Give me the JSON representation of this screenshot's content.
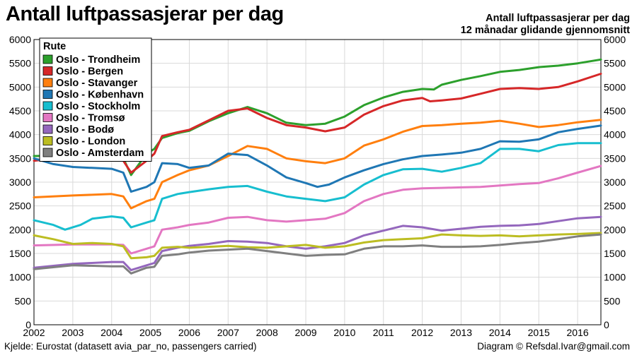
{
  "header": {
    "title": "Antall luftpassasjerar per dag",
    "subtitle_line1": "Antall luftpassasjerar per dag",
    "subtitle_line2": "12 månadar glidande gjennomsnitt"
  },
  "footer": {
    "source": "Kjelde: Eurostat (datasett avia_par_no, passengers carried)",
    "credit": "Diagram © Refsdal.Ivar@gmail.com"
  },
  "chart_data": {
    "type": "line",
    "title": "Antall luftpassasjerar per dag",
    "subtitle": "12 månadar glidande gjennomsnitt",
    "xlim": [
      2002,
      2016.6
    ],
    "ylim": [
      0,
      6000
    ],
    "x_ticks": [
      "2002",
      "2003",
      "2004",
      "2005",
      "2006",
      "2007",
      "2008",
      "2009",
      "2010",
      "2011",
      "2012",
      "2013",
      "2014",
      "2015",
      "2016"
    ],
    "y_ticks": [
      0,
      500,
      1000,
      1500,
      2000,
      2500,
      3000,
      3500,
      4000,
      4500,
      5000,
      5500,
      6000
    ],
    "grid": true,
    "legend_title": "Rute",
    "legend_position": "top-left",
    "series": [
      {
        "name": "Oslo - Trondheim",
        "color": "#2ca02c",
        "points": [
          [
            2002,
            3550
          ],
          [
            2003,
            3560
          ],
          [
            2004,
            3540
          ],
          [
            2004.3,
            3500
          ],
          [
            2004.5,
            3150
          ],
          [
            2004.9,
            3600
          ],
          [
            2005.1,
            3700
          ],
          [
            2005.3,
            3930
          ],
          [
            2005.7,
            4030
          ],
          [
            2006,
            4080
          ],
          [
            2006.5,
            4280
          ],
          [
            2007,
            4450
          ],
          [
            2007.5,
            4580
          ],
          [
            2008,
            4450
          ],
          [
            2008.5,
            4250
          ],
          [
            2009,
            4200
          ],
          [
            2009.5,
            4230
          ],
          [
            2010,
            4380
          ],
          [
            2010.5,
            4620
          ],
          [
            2011,
            4780
          ],
          [
            2011.5,
            4900
          ],
          [
            2012,
            4960
          ],
          [
            2012.3,
            4950
          ],
          [
            2012.5,
            5050
          ],
          [
            2013,
            5150
          ],
          [
            2013.5,
            5230
          ],
          [
            2014,
            5320
          ],
          [
            2014.5,
            5360
          ],
          [
            2015,
            5420
          ],
          [
            2015.5,
            5450
          ],
          [
            2016,
            5500
          ],
          [
            2016.6,
            5580
          ]
        ]
      },
      {
        "name": "Oslo - Bergen",
        "color": "#d62728",
        "points": [
          [
            2002,
            3450
          ],
          [
            2003,
            3550
          ],
          [
            2004,
            3500
          ],
          [
            2004.3,
            3450
          ],
          [
            2004.5,
            3200
          ],
          [
            2004.9,
            3450
          ],
          [
            2005.1,
            3600
          ],
          [
            2005.3,
            3970
          ],
          [
            2005.7,
            4050
          ],
          [
            2006,
            4100
          ],
          [
            2006.5,
            4300
          ],
          [
            2007,
            4500
          ],
          [
            2007.5,
            4550
          ],
          [
            2008,
            4350
          ],
          [
            2008.5,
            4200
          ],
          [
            2009,
            4150
          ],
          [
            2009.5,
            4070
          ],
          [
            2010,
            4150
          ],
          [
            2010.5,
            4420
          ],
          [
            2011,
            4600
          ],
          [
            2011.5,
            4720
          ],
          [
            2012,
            4770
          ],
          [
            2012.2,
            4700
          ],
          [
            2012.5,
            4720
          ],
          [
            2013,
            4760
          ],
          [
            2013.5,
            4860
          ],
          [
            2014,
            4960
          ],
          [
            2014.5,
            4980
          ],
          [
            2015,
            4960
          ],
          [
            2015.5,
            5000
          ],
          [
            2016,
            5120
          ],
          [
            2016.6,
            5280
          ]
        ]
      },
      {
        "name": "Oslo - Stavanger",
        "color": "#ff7f0e",
        "points": [
          [
            2002,
            2680
          ],
          [
            2003,
            2720
          ],
          [
            2004,
            2750
          ],
          [
            2004.3,
            2700
          ],
          [
            2004.5,
            2450
          ],
          [
            2004.9,
            2600
          ],
          [
            2005.1,
            2650
          ],
          [
            2005.3,
            3000
          ],
          [
            2005.7,
            3150
          ],
          [
            2006,
            3250
          ],
          [
            2006.5,
            3350
          ],
          [
            2007,
            3550
          ],
          [
            2007.5,
            3760
          ],
          [
            2008,
            3700
          ],
          [
            2008.5,
            3500
          ],
          [
            2009,
            3440
          ],
          [
            2009.5,
            3400
          ],
          [
            2010,
            3500
          ],
          [
            2010.5,
            3770
          ],
          [
            2011,
            3900
          ],
          [
            2011.5,
            4060
          ],
          [
            2012,
            4180
          ],
          [
            2012.5,
            4200
          ],
          [
            2013,
            4230
          ],
          [
            2013.5,
            4250
          ],
          [
            2014,
            4290
          ],
          [
            2014.5,
            4230
          ],
          [
            2015,
            4160
          ],
          [
            2015.5,
            4200
          ],
          [
            2016,
            4260
          ],
          [
            2016.6,
            4310
          ]
        ]
      },
      {
        "name": "Oslo - København",
        "color": "#1f77b4",
        "points": [
          [
            2002,
            3500
          ],
          [
            2002.5,
            3380
          ],
          [
            2003,
            3320
          ],
          [
            2003.5,
            3300
          ],
          [
            2004,
            3280
          ],
          [
            2004.3,
            3200
          ],
          [
            2004.5,
            2800
          ],
          [
            2004.9,
            2900
          ],
          [
            2005.1,
            3000
          ],
          [
            2005.3,
            3400
          ],
          [
            2005.7,
            3380
          ],
          [
            2006,
            3300
          ],
          [
            2006.5,
            3350
          ],
          [
            2007,
            3600
          ],
          [
            2007.5,
            3570
          ],
          [
            2008,
            3350
          ],
          [
            2008.5,
            3100
          ],
          [
            2009,
            2980
          ],
          [
            2009.3,
            2900
          ],
          [
            2009.6,
            2950
          ],
          [
            2010,
            3100
          ],
          [
            2010.5,
            3250
          ],
          [
            2011,
            3380
          ],
          [
            2011.5,
            3480
          ],
          [
            2012,
            3550
          ],
          [
            2012.5,
            3580
          ],
          [
            2013,
            3620
          ],
          [
            2013.5,
            3700
          ],
          [
            2014,
            3860
          ],
          [
            2014.5,
            3850
          ],
          [
            2015,
            3900
          ],
          [
            2015.5,
            4050
          ],
          [
            2016,
            4120
          ],
          [
            2016.6,
            4190
          ]
        ]
      },
      {
        "name": "Oslo - Stockholm",
        "color": "#17becf",
        "points": [
          [
            2002,
            2200
          ],
          [
            2002.5,
            2100
          ],
          [
            2002.8,
            2000
          ],
          [
            2003.2,
            2100
          ],
          [
            2003.5,
            2230
          ],
          [
            2004,
            2280
          ],
          [
            2004.3,
            2250
          ],
          [
            2004.5,
            2050
          ],
          [
            2004.9,
            2150
          ],
          [
            2005.1,
            2200
          ],
          [
            2005.3,
            2650
          ],
          [
            2005.7,
            2750
          ],
          [
            2006,
            2790
          ],
          [
            2006.5,
            2850
          ],
          [
            2007,
            2900
          ],
          [
            2007.5,
            2920
          ],
          [
            2008,
            2800
          ],
          [
            2008.5,
            2700
          ],
          [
            2009,
            2650
          ],
          [
            2009.5,
            2600
          ],
          [
            2010,
            2680
          ],
          [
            2010.5,
            2950
          ],
          [
            2011,
            3150
          ],
          [
            2011.5,
            3270
          ],
          [
            2012,
            3280
          ],
          [
            2012.5,
            3220
          ],
          [
            2013,
            3300
          ],
          [
            2013.5,
            3400
          ],
          [
            2014,
            3700
          ],
          [
            2014.5,
            3700
          ],
          [
            2015,
            3650
          ],
          [
            2015.5,
            3780
          ],
          [
            2016,
            3820
          ],
          [
            2016.6,
            3820
          ]
        ]
      },
      {
        "name": "Oslo - Tromsø",
        "color": "#e377c2",
        "points": [
          [
            2002,
            1670
          ],
          [
            2003,
            1690
          ],
          [
            2004,
            1690
          ],
          [
            2004.3,
            1680
          ],
          [
            2004.5,
            1500
          ],
          [
            2004.9,
            1600
          ],
          [
            2005.1,
            1650
          ],
          [
            2005.3,
            2000
          ],
          [
            2005.7,
            2050
          ],
          [
            2006,
            2100
          ],
          [
            2006.5,
            2150
          ],
          [
            2007,
            2250
          ],
          [
            2007.5,
            2270
          ],
          [
            2008,
            2200
          ],
          [
            2008.5,
            2170
          ],
          [
            2009,
            2200
          ],
          [
            2009.5,
            2230
          ],
          [
            2010,
            2350
          ],
          [
            2010.5,
            2600
          ],
          [
            2011,
            2750
          ],
          [
            2011.5,
            2840
          ],
          [
            2012,
            2870
          ],
          [
            2012.5,
            2880
          ],
          [
            2013,
            2890
          ],
          [
            2013.5,
            2900
          ],
          [
            2014,
            2930
          ],
          [
            2014.5,
            2960
          ],
          [
            2015,
            2980
          ],
          [
            2015.5,
            3080
          ],
          [
            2016,
            3200
          ],
          [
            2016.6,
            3340
          ]
        ]
      },
      {
        "name": "Oslo - Bodø",
        "color": "#9467bd",
        "points": [
          [
            2002,
            1200
          ],
          [
            2003,
            1280
          ],
          [
            2004,
            1320
          ],
          [
            2004.3,
            1320
          ],
          [
            2004.5,
            1150
          ],
          [
            2004.9,
            1250
          ],
          [
            2005.1,
            1300
          ],
          [
            2005.3,
            1550
          ],
          [
            2005.7,
            1620
          ],
          [
            2006,
            1660
          ],
          [
            2006.5,
            1700
          ],
          [
            2007,
            1760
          ],
          [
            2007.5,
            1750
          ],
          [
            2008,
            1720
          ],
          [
            2008.5,
            1650
          ],
          [
            2009,
            1600
          ],
          [
            2009.5,
            1650
          ],
          [
            2010,
            1720
          ],
          [
            2010.5,
            1880
          ],
          [
            2011,
            1980
          ],
          [
            2011.5,
            2080
          ],
          [
            2012,
            2050
          ],
          [
            2012.5,
            1980
          ],
          [
            2013,
            2020
          ],
          [
            2013.5,
            2060
          ],
          [
            2014,
            2080
          ],
          [
            2014.5,
            2090
          ],
          [
            2015,
            2120
          ],
          [
            2015.5,
            2180
          ],
          [
            2016,
            2240
          ],
          [
            2016.6,
            2270
          ]
        ]
      },
      {
        "name": "Oslo - London",
        "color": "#bcbd22",
        "points": [
          [
            2002,
            1880
          ],
          [
            2002.5,
            1800
          ],
          [
            2003,
            1700
          ],
          [
            2003.5,
            1720
          ],
          [
            2004,
            1700
          ],
          [
            2004.3,
            1650
          ],
          [
            2004.5,
            1400
          ],
          [
            2004.9,
            1420
          ],
          [
            2005.1,
            1450
          ],
          [
            2005.3,
            1620
          ],
          [
            2005.7,
            1640
          ],
          [
            2006,
            1620
          ],
          [
            2006.5,
            1640
          ],
          [
            2007,
            1660
          ],
          [
            2007.5,
            1630
          ],
          [
            2008,
            1620
          ],
          [
            2008.5,
            1650
          ],
          [
            2009,
            1680
          ],
          [
            2009.5,
            1620
          ],
          [
            2010,
            1650
          ],
          [
            2010.5,
            1730
          ],
          [
            2011,
            1780
          ],
          [
            2011.5,
            1800
          ],
          [
            2012,
            1820
          ],
          [
            2012.5,
            1900
          ],
          [
            2013,
            1880
          ],
          [
            2013.5,
            1870
          ],
          [
            2014,
            1880
          ],
          [
            2014.5,
            1860
          ],
          [
            2015,
            1880
          ],
          [
            2015.5,
            1900
          ],
          [
            2016,
            1910
          ],
          [
            2016.6,
            1930
          ]
        ]
      },
      {
        "name": "Oslo - Amsterdam",
        "color": "#7f7f7f",
        "points": [
          [
            2002,
            1170
          ],
          [
            2003,
            1250
          ],
          [
            2004,
            1230
          ],
          [
            2004.3,
            1230
          ],
          [
            2004.5,
            1080
          ],
          [
            2004.9,
            1200
          ],
          [
            2005.1,
            1220
          ],
          [
            2005.3,
            1450
          ],
          [
            2005.7,
            1480
          ],
          [
            2006,
            1520
          ],
          [
            2006.5,
            1560
          ],
          [
            2007,
            1580
          ],
          [
            2007.5,
            1600
          ],
          [
            2008,
            1550
          ],
          [
            2008.5,
            1500
          ],
          [
            2009,
            1450
          ],
          [
            2009.5,
            1470
          ],
          [
            2010,
            1480
          ],
          [
            2010.5,
            1600
          ],
          [
            2011,
            1650
          ],
          [
            2011.5,
            1650
          ],
          [
            2012,
            1670
          ],
          [
            2012.5,
            1640
          ],
          [
            2013,
            1640
          ],
          [
            2013.5,
            1650
          ],
          [
            2014,
            1680
          ],
          [
            2014.5,
            1720
          ],
          [
            2015,
            1750
          ],
          [
            2015.5,
            1800
          ],
          [
            2016,
            1860
          ],
          [
            2016.6,
            1900
          ]
        ]
      }
    ]
  }
}
